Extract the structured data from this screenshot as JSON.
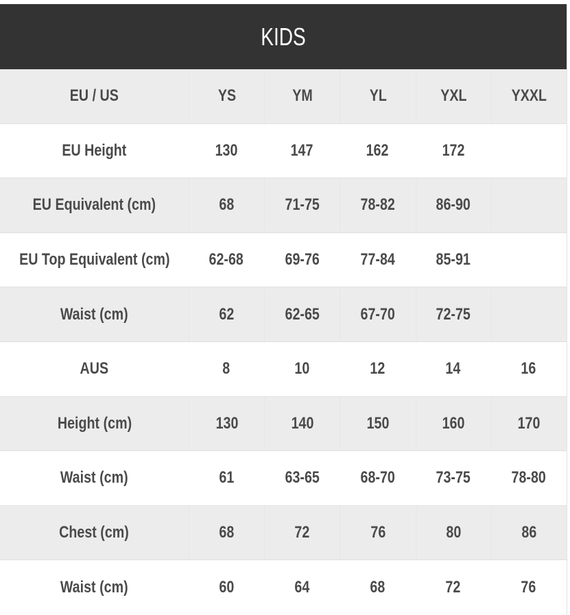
{
  "title": "KIDS",
  "colors": {
    "title_bar_bg": "#333333",
    "title_text": "#ffffff",
    "shaded_row_bg": "#ececec",
    "plain_row_bg": "#ffffff",
    "cell_text": "#4a4a4a"
  },
  "table": {
    "header": {
      "label": "EU / US",
      "sizes": [
        "YS",
        "YM",
        "YL",
        "YXL",
        "YXXL"
      ]
    },
    "rows": [
      {
        "label": "EU Height",
        "values": [
          "130",
          "147",
          "162",
          "172",
          ""
        ]
      },
      {
        "label": "EU Equivalent (cm)",
        "values": [
          "68",
          "71-75",
          "78-82",
          "86-90",
          ""
        ]
      },
      {
        "label": "EU Top Equivalent (cm)",
        "values": [
          "62-68",
          "69-76",
          "77-84",
          "85-91",
          ""
        ]
      },
      {
        "label": "Waist (cm)",
        "values": [
          "62",
          "62-65",
          "67-70",
          "72-75",
          ""
        ]
      },
      {
        "label": "AUS",
        "values": [
          "8",
          "10",
          "12",
          "14",
          "16"
        ]
      },
      {
        "label": "Height (cm)",
        "values": [
          "130",
          "140",
          "150",
          "160",
          "170"
        ]
      },
      {
        "label": "Waist (cm)",
        "values": [
          "61",
          "63-65",
          "68-70",
          "73-75",
          "78-80"
        ]
      },
      {
        "label": "Chest (cm)",
        "values": [
          "68",
          "72",
          "76",
          "80",
          "86"
        ]
      },
      {
        "label": "Waist (cm)",
        "values": [
          "60",
          "64",
          "68",
          "72",
          "76"
        ]
      }
    ]
  }
}
